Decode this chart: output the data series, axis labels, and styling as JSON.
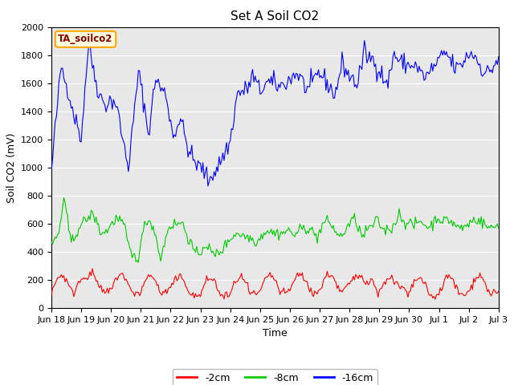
{
  "title": "Set A Soil CO2",
  "ylabel": "Soil CO2 (mV)",
  "xlabel": "Time",
  "legend_label": "TA_soilco2",
  "ylim": [
    0,
    2000
  ],
  "bg_color": "#e8e8e8",
  "fig_color": "#ffffff",
  "line_colors": {
    "red": "#ff0000",
    "green": "#00cc00",
    "blue": "#0000ff"
  },
  "legend_entries": [
    "-2cm",
    "-8cm",
    "-16cm"
  ],
  "xtick_labels": [
    "Jun 18",
    "Jun 19",
    "Jun 20",
    "Jun 21",
    "Jun 22",
    "Jun 23",
    "Jun 24",
    "Jun 25",
    "Jun 26",
    "Jun 27",
    "Jun 28",
    "Jun 29",
    "Jun 30",
    "Jul 1",
    "Jul 2",
    "Jul 3"
  ],
  "title_fontsize": 11,
  "axis_fontsize": 9,
  "tick_fontsize": 8
}
